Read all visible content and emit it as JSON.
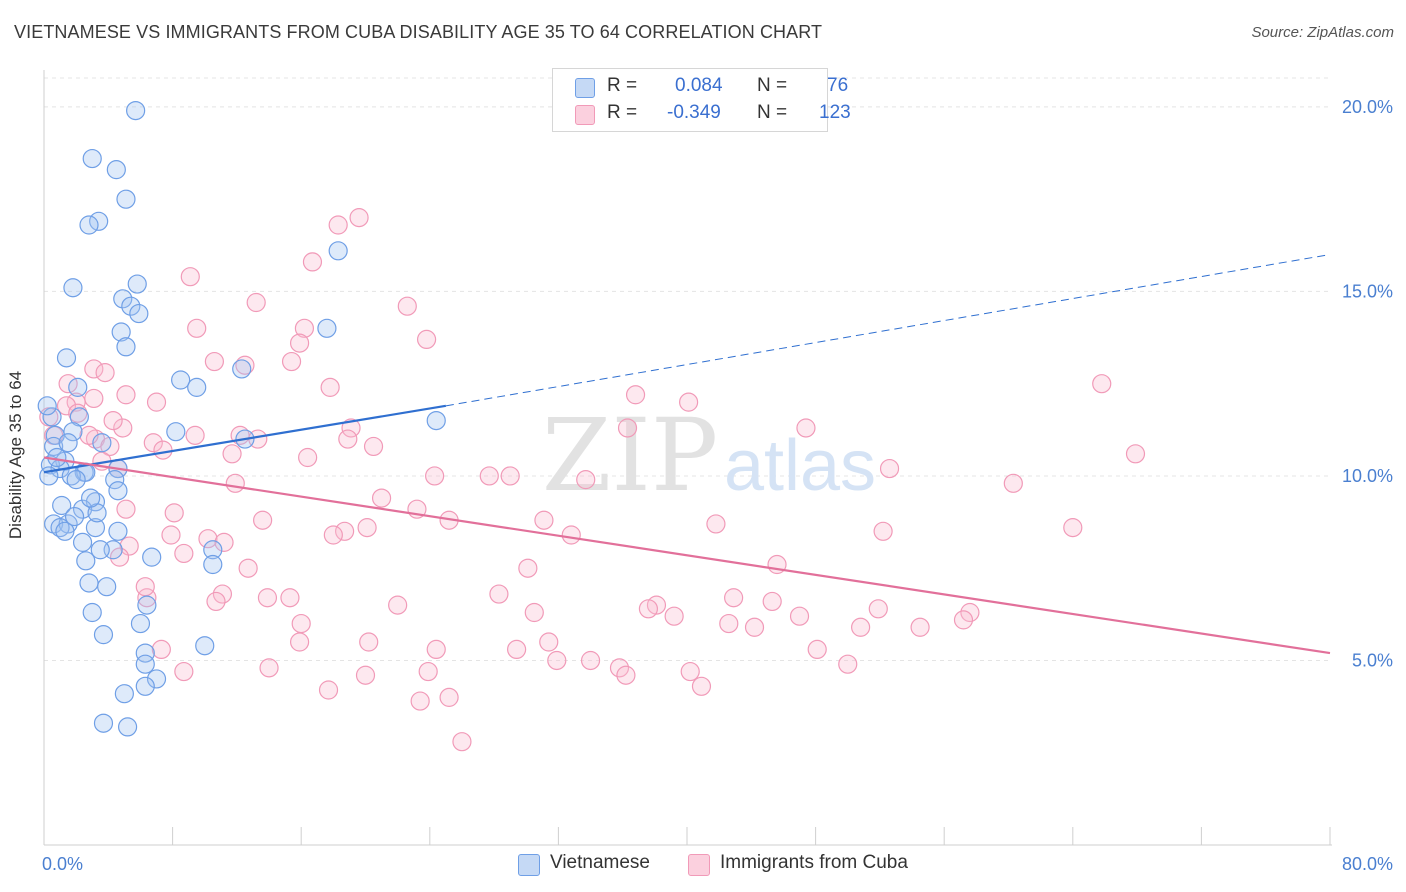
{
  "title": "VIETNAMESE VS IMMIGRANTS FROM CUBA DISABILITY AGE 35 TO 64 CORRELATION CHART",
  "source": "Source: ZipAtlas.com",
  "watermark": {
    "zip": "ZIP",
    "atlas": "atlas"
  },
  "legend": {
    "r_label": "R =",
    "n_label": "N =",
    "rows": [
      {
        "r": "0.084",
        "n": "76"
      },
      {
        "r": "-0.349",
        "n": "123"
      }
    ]
  },
  "chart_data": {
    "type": "scatter",
    "title": "VIETNAMESE VS IMMIGRANTS FROM CUBA DISABILITY AGE 35 TO 64 CORRELATION CHART",
    "xlabel": "",
    "ylabel": "Disability Age 35 to 64",
    "xlim": [
      0,
      80
    ],
    "ylim": [
      0,
      21
    ],
    "x_tick_labels": [
      "0.0%",
      "80.0%"
    ],
    "y_ticks": [
      5,
      10,
      15,
      20
    ],
    "y_tick_labels": [
      "5.0%",
      "10.0%",
      "15.0%",
      "20.0%"
    ],
    "grid": true,
    "legend_position": "top-center",
    "colors": {
      "vietnamese": "#6f9fe6",
      "cuba": "#f19ab8",
      "vietnamese_line": "#2f6fd0",
      "cuba_line": "#e2709a"
    },
    "series": [
      {
        "name": "Vietnamese",
        "r": 0.084,
        "n": 76,
        "trend": {
          "x": [
            0,
            25
          ],
          "y": [
            10.1,
            11.9
          ],
          "dashed_to": [
            80,
            16.0
          ]
        },
        "points": [
          [
            5.7,
            19.9
          ],
          [
            3.0,
            18.6
          ],
          [
            4.5,
            18.3
          ],
          [
            5.1,
            17.5
          ],
          [
            3.4,
            16.9
          ],
          [
            2.8,
            16.8
          ],
          [
            18.3,
            16.1
          ],
          [
            1.8,
            15.1
          ],
          [
            5.8,
            15.2
          ],
          [
            4.9,
            14.8
          ],
          [
            5.4,
            14.6
          ],
          [
            5.9,
            14.4
          ],
          [
            17.6,
            14.0
          ],
          [
            4.8,
            13.9
          ],
          [
            5.1,
            13.5
          ],
          [
            1.4,
            13.2
          ],
          [
            12.3,
            12.9
          ],
          [
            8.5,
            12.6
          ],
          [
            9.5,
            12.4
          ],
          [
            2.1,
            12.4
          ],
          [
            0.5,
            11.6
          ],
          [
            2.2,
            11.6
          ],
          [
            24.4,
            11.5
          ],
          [
            0.7,
            11.1
          ],
          [
            1.8,
            11.2
          ],
          [
            8.2,
            11.2
          ],
          [
            12.5,
            11.0
          ],
          [
            0.6,
            10.8
          ],
          [
            1.5,
            10.9
          ],
          [
            3.6,
            10.9
          ],
          [
            1.3,
            10.4
          ],
          [
            0.4,
            10.3
          ],
          [
            1.0,
            10.2
          ],
          [
            0.3,
            10.0
          ],
          [
            2.5,
            10.1
          ],
          [
            2.6,
            10.1
          ],
          [
            4.6,
            10.2
          ],
          [
            1.7,
            10.0
          ],
          [
            2.0,
            9.9
          ],
          [
            4.4,
            9.9
          ],
          [
            4.6,
            9.6
          ],
          [
            3.2,
            9.3
          ],
          [
            1.1,
            9.2
          ],
          [
            2.4,
            9.1
          ],
          [
            0.6,
            8.7
          ],
          [
            1.5,
            8.7
          ],
          [
            1.0,
            8.6
          ],
          [
            3.2,
            8.6
          ],
          [
            1.3,
            8.5
          ],
          [
            4.6,
            8.5
          ],
          [
            2.4,
            8.2
          ],
          [
            4.3,
            8.0
          ],
          [
            10.5,
            8.0
          ],
          [
            3.5,
            8.0
          ],
          [
            6.7,
            7.8
          ],
          [
            2.6,
            7.7
          ],
          [
            10.5,
            7.6
          ],
          [
            2.8,
            7.1
          ],
          [
            3.9,
            7.0
          ],
          [
            6.4,
            6.5
          ],
          [
            3.0,
            6.3
          ],
          [
            6.0,
            6.0
          ],
          [
            3.7,
            5.7
          ],
          [
            10.0,
            5.4
          ],
          [
            6.3,
            5.2
          ],
          [
            6.3,
            4.9
          ],
          [
            7.0,
            4.5
          ],
          [
            6.3,
            4.3
          ],
          [
            5.0,
            4.1
          ],
          [
            3.7,
            3.3
          ],
          [
            5.2,
            3.2
          ],
          [
            0.2,
            11.9
          ],
          [
            1.9,
            8.9
          ],
          [
            3.3,
            9.0
          ],
          [
            0.8,
            10.5
          ],
          [
            2.9,
            9.4
          ]
        ]
      },
      {
        "name": "Immigrants from Cuba",
        "r": -0.349,
        "n": 123,
        "trend": {
          "x": [
            0,
            80
          ],
          "y": [
            10.5,
            5.2
          ]
        },
        "points": [
          [
            19.6,
            17.0
          ],
          [
            18.3,
            16.8
          ],
          [
            16.7,
            15.8
          ],
          [
            9.1,
            15.4
          ],
          [
            13.2,
            14.7
          ],
          [
            22.6,
            14.6
          ],
          [
            9.5,
            14.0
          ],
          [
            16.2,
            14.0
          ],
          [
            15.9,
            13.6
          ],
          [
            23.8,
            13.7
          ],
          [
            10.6,
            13.1
          ],
          [
            12.5,
            13.0
          ],
          [
            15.4,
            13.1
          ],
          [
            3.1,
            12.9
          ],
          [
            3.8,
            12.8
          ],
          [
            1.5,
            12.5
          ],
          [
            17.8,
            12.4
          ],
          [
            5.1,
            12.2
          ],
          [
            36.8,
            12.2
          ],
          [
            40.1,
            12.0
          ],
          [
            65.8,
            12.5
          ],
          [
            2.0,
            12.0
          ],
          [
            3.1,
            12.1
          ],
          [
            7.0,
            12.0
          ],
          [
            1.4,
            11.9
          ],
          [
            2.1,
            11.7
          ],
          [
            0.3,
            11.6
          ],
          [
            4.9,
            11.3
          ],
          [
            36.3,
            11.3
          ],
          [
            4.3,
            11.5
          ],
          [
            19.1,
            11.3
          ],
          [
            47.4,
            11.3
          ],
          [
            0.6,
            11.1
          ],
          [
            3.2,
            11.0
          ],
          [
            9.4,
            11.1
          ],
          [
            12.2,
            11.1
          ],
          [
            13.3,
            11.0
          ],
          [
            18.9,
            11.0
          ],
          [
            6.8,
            10.9
          ],
          [
            7.4,
            10.7
          ],
          [
            20.5,
            10.8
          ],
          [
            4.1,
            10.8
          ],
          [
            11.7,
            10.6
          ],
          [
            16.4,
            10.5
          ],
          [
            67.9,
            10.6
          ],
          [
            52.6,
            10.2
          ],
          [
            4.6,
            10.2
          ],
          [
            24.3,
            10.0
          ],
          [
            27.7,
            10.0
          ],
          [
            29.0,
            10.0
          ],
          [
            33.7,
            9.9
          ],
          [
            60.3,
            9.8
          ],
          [
            11.9,
            9.8
          ],
          [
            21.0,
            9.4
          ],
          [
            5.1,
            9.1
          ],
          [
            23.2,
            9.1
          ],
          [
            8.1,
            9.0
          ],
          [
            13.6,
            8.8
          ],
          [
            25.2,
            8.8
          ],
          [
            31.1,
            8.8
          ],
          [
            41.8,
            8.7
          ],
          [
            64.0,
            8.6
          ],
          [
            20.1,
            8.6
          ],
          [
            18.7,
            8.5
          ],
          [
            18.0,
            8.4
          ],
          [
            32.8,
            8.4
          ],
          [
            52.2,
            8.5
          ],
          [
            7.9,
            8.4
          ],
          [
            10.2,
            8.3
          ],
          [
            11.2,
            8.2
          ],
          [
            5.3,
            8.1
          ],
          [
            8.7,
            7.9
          ],
          [
            45.6,
            7.6
          ],
          [
            4.7,
            7.8
          ],
          [
            12.7,
            7.5
          ],
          [
            30.1,
            7.5
          ],
          [
            11.1,
            6.8
          ],
          [
            28.3,
            6.8
          ],
          [
            13.9,
            6.7
          ],
          [
            15.3,
            6.7
          ],
          [
            42.9,
            6.7
          ],
          [
            45.3,
            6.6
          ],
          [
            6.4,
            6.7
          ],
          [
            10.7,
            6.6
          ],
          [
            22.0,
            6.5
          ],
          [
            38.1,
            6.5
          ],
          [
            37.6,
            6.4
          ],
          [
            51.9,
            6.4
          ],
          [
            30.5,
            6.3
          ],
          [
            47.0,
            6.2
          ],
          [
            57.6,
            6.3
          ],
          [
            39.2,
            6.2
          ],
          [
            16.0,
            6.0
          ],
          [
            42.6,
            6.0
          ],
          [
            44.2,
            5.9
          ],
          [
            50.8,
            5.9
          ],
          [
            54.5,
            5.9
          ],
          [
            15.9,
            5.5
          ],
          [
            20.2,
            5.5
          ],
          [
            31.4,
            5.5
          ],
          [
            7.3,
            5.3
          ],
          [
            29.4,
            5.3
          ],
          [
            24.4,
            5.3
          ],
          [
            31.9,
            5.0
          ],
          [
            34.0,
            5.0
          ],
          [
            48.1,
            5.3
          ],
          [
            50.0,
            4.9
          ],
          [
            14.0,
            4.8
          ],
          [
            35.8,
            4.8
          ],
          [
            23.9,
            4.7
          ],
          [
            20.0,
            4.6
          ],
          [
            36.2,
            4.6
          ],
          [
            40.2,
            4.7
          ],
          [
            8.7,
            4.7
          ],
          [
            17.7,
            4.2
          ],
          [
            23.4,
            3.9
          ],
          [
            25.2,
            4.0
          ],
          [
            26.0,
            2.8
          ],
          [
            40.9,
            4.3
          ],
          [
            57.2,
            6.1
          ],
          [
            2.8,
            11.1
          ],
          [
            3.6,
            10.4
          ],
          [
            6.3,
            7.0
          ]
        ]
      }
    ]
  }
}
